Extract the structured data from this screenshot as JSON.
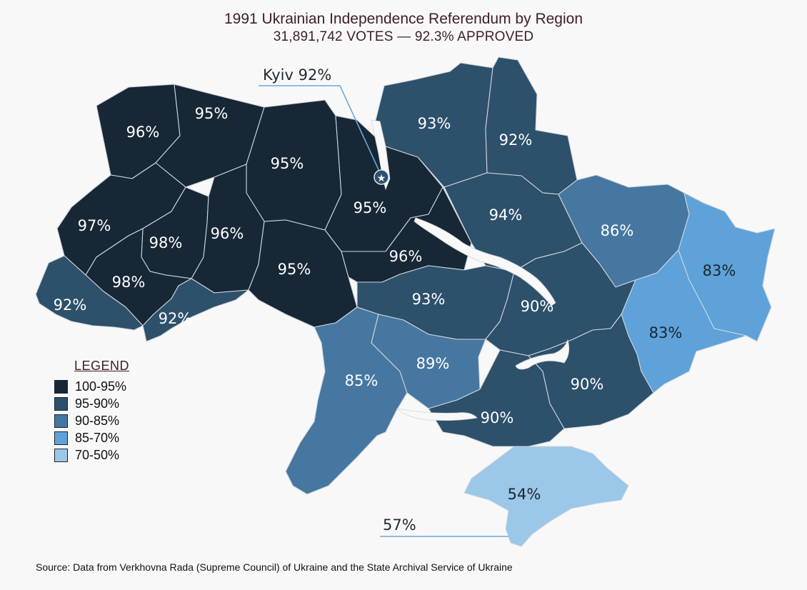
{
  "title": "1991 Ukrainian Independence Referendum by Region",
  "subtitle": "31,891,742 VOTES — 92.3% APPROVED",
  "colors": {
    "c1": "#172736",
    "c2": "#2d506b",
    "c3": "#4677a0",
    "c4": "#5ea2d9",
    "c5": "#9bc7e8",
    "background": "#f9f8f8",
    "border": "#cfd6de"
  },
  "callouts": {
    "kyiv_label": "Kyiv 92%",
    "sevastopol_label": "57%"
  },
  "regions": [
    {
      "id": "volyn",
      "value": "96%",
      "class": "c1"
    },
    {
      "id": "rivne",
      "value": "95%",
      "class": "c1"
    },
    {
      "id": "zhytomyr",
      "value": "95%",
      "class": "c1"
    },
    {
      "id": "kyiv-oblast",
      "value": "95%",
      "class": "c1"
    },
    {
      "id": "chernihiv",
      "value": "93%",
      "class": "c2"
    },
    {
      "id": "sumy",
      "value": "92%",
      "class": "c2"
    },
    {
      "id": "lviv",
      "value": "97%",
      "class": "c1"
    },
    {
      "id": "ternopil",
      "value": "98%",
      "class": "c1"
    },
    {
      "id": "khmelnytskyi",
      "value": "96%",
      "class": "c1"
    },
    {
      "id": "vinnytsia",
      "value": "95%",
      "class": "c1"
    },
    {
      "id": "cherkasy",
      "value": "96%",
      "class": "c1"
    },
    {
      "id": "poltava",
      "value": "94%",
      "class": "c2"
    },
    {
      "id": "kharkiv",
      "value": "86%",
      "class": "c3"
    },
    {
      "id": "luhansk",
      "value": "83%",
      "class": "c4"
    },
    {
      "id": "donetsk",
      "value": "83%",
      "class": "c4"
    },
    {
      "id": "ivano-frankivsk",
      "value": "98%",
      "class": "c1"
    },
    {
      "id": "zakarpattia",
      "value": "92%",
      "class": "c2"
    },
    {
      "id": "chernivtsi",
      "value": "92%",
      "class": "c2"
    },
    {
      "id": "kirovohrad",
      "value": "93%",
      "class": "c2"
    },
    {
      "id": "dnipropetrovsk",
      "value": "90%",
      "class": "c2"
    },
    {
      "id": "odesa",
      "value": "85%",
      "class": "c3"
    },
    {
      "id": "mykolaiv",
      "value": "89%",
      "class": "c3"
    },
    {
      "id": "kherson",
      "value": "90%",
      "class": "c2"
    },
    {
      "id": "zaporizhzhia",
      "value": "90%",
      "class": "c2"
    },
    {
      "id": "crimea",
      "value": "54%",
      "class": "c5"
    }
  ],
  "legend": {
    "title": "LEGEND",
    "items": [
      {
        "label": "100-95%",
        "color": "#172736"
      },
      {
        "label": "95-90%",
        "color": "#2d506b"
      },
      {
        "label": "90-85%",
        "color": "#4677a0"
      },
      {
        "label": "85-70%",
        "color": "#5ea2d9"
      },
      {
        "label": "70-50%",
        "color": "#9bc7e8"
      }
    ]
  },
  "source": "Source: Data from Verkhovna Rada (Supreme Council) of Ukraine and the State Archival Service of Ukraine"
}
